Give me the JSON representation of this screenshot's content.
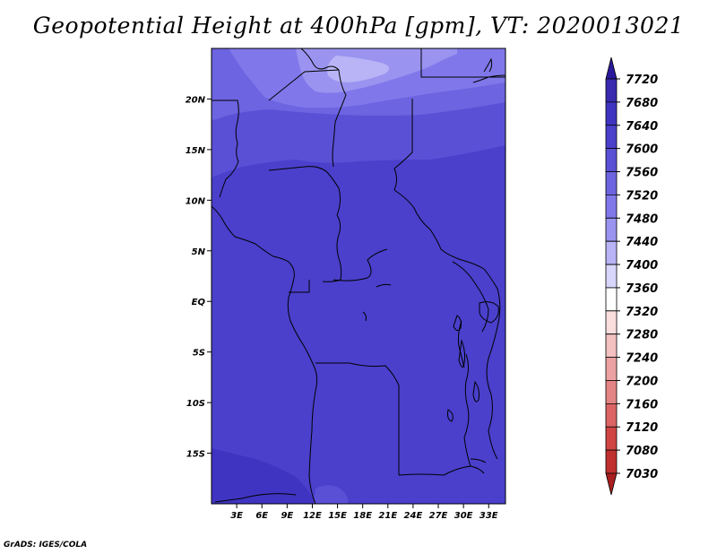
{
  "title": "Geopotential Height at 400hPa [gpm], VT: 2020013021",
  "credit": "GrADS: IGES/COLA",
  "map": {
    "lon_range": [
      0,
      35
    ],
    "lat_range": [
      -20,
      25
    ],
    "lon_ticks": [
      {
        "value": 3,
        "label": "3E"
      },
      {
        "value": 6,
        "label": "6E"
      },
      {
        "value": 9,
        "label": "9E"
      },
      {
        "value": 12,
        "label": "12E"
      },
      {
        "value": 15,
        "label": "15E"
      },
      {
        "value": 18,
        "label": "18E"
      },
      {
        "value": 21,
        "label": "21E"
      },
      {
        "value": 24,
        "label": "24E"
      },
      {
        "value": 27,
        "label": "27E"
      },
      {
        "value": 30,
        "label": "30E"
      },
      {
        "value": 33,
        "label": "33E"
      }
    ],
    "lat_ticks": [
      {
        "value": 20,
        "label": "20N"
      },
      {
        "value": 15,
        "label": "15N"
      },
      {
        "value": 10,
        "label": "10N"
      },
      {
        "value": 5,
        "label": "5N"
      },
      {
        "value": 0,
        "label": "EQ"
      },
      {
        "value": -5,
        "label": "5S"
      },
      {
        "value": -10,
        "label": "10S"
      },
      {
        "value": -15,
        "label": "15S"
      }
    ]
  },
  "colorbar": {
    "levels": [
      "7720",
      "7680",
      "7640",
      "7600",
      "7560",
      "7520",
      "7480",
      "7440",
      "7400",
      "7360",
      "7320",
      "7280",
      "7240",
      "7200",
      "7160",
      "7120",
      "7080",
      "7030"
    ],
    "colors": [
      "#2a1a9a",
      "#3a2ab0",
      "#3f34c2",
      "#4a40cc",
      "#5a50d6",
      "#6c64e0",
      "#8078ea",
      "#9a94f0",
      "#b8b4f6",
      "#d8d6fa",
      "#ffffff",
      "#fadede",
      "#f4c0c0",
      "#eca2a2",
      "#e48484",
      "#dc6464",
      "#d04444",
      "#c03030",
      "#a81e1e"
    ]
  }
}
